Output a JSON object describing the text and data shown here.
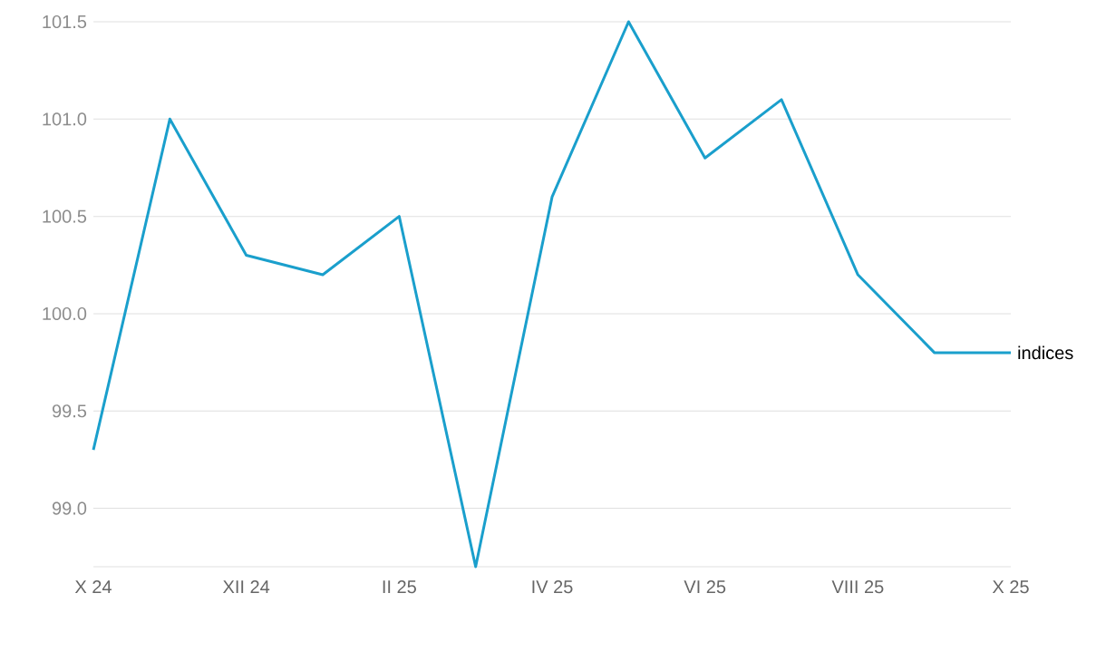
{
  "chart_data": {
    "type": "line",
    "categories": [
      "X 24",
      null,
      "XII 24",
      null,
      "II 25",
      null,
      "IV 25",
      null,
      "VI 25",
      null,
      "VIII 25",
      null,
      "X 25"
    ],
    "series": [
      {
        "name": "indices",
        "color": "#1a9fcc",
        "values": [
          99.3,
          101.0,
          100.3,
          100.2,
          100.5,
          98.7,
          100.6,
          101.5,
          100.8,
          101.1,
          100.2,
          99.8,
          99.8
        ]
      }
    ],
    "ylim": [
      98.7,
      101.5
    ],
    "yticks": [
      {
        "value": 99.0,
        "label": "99.0"
      },
      {
        "value": 99.5,
        "label": "99.5"
      },
      {
        "value": 100.0,
        "label": "100.0"
      },
      {
        "value": 100.5,
        "label": "100.5"
      },
      {
        "value": 101.0,
        "label": "101.0"
      },
      {
        "value": 101.5,
        "label": "101.5"
      }
    ],
    "grid": "y"
  }
}
